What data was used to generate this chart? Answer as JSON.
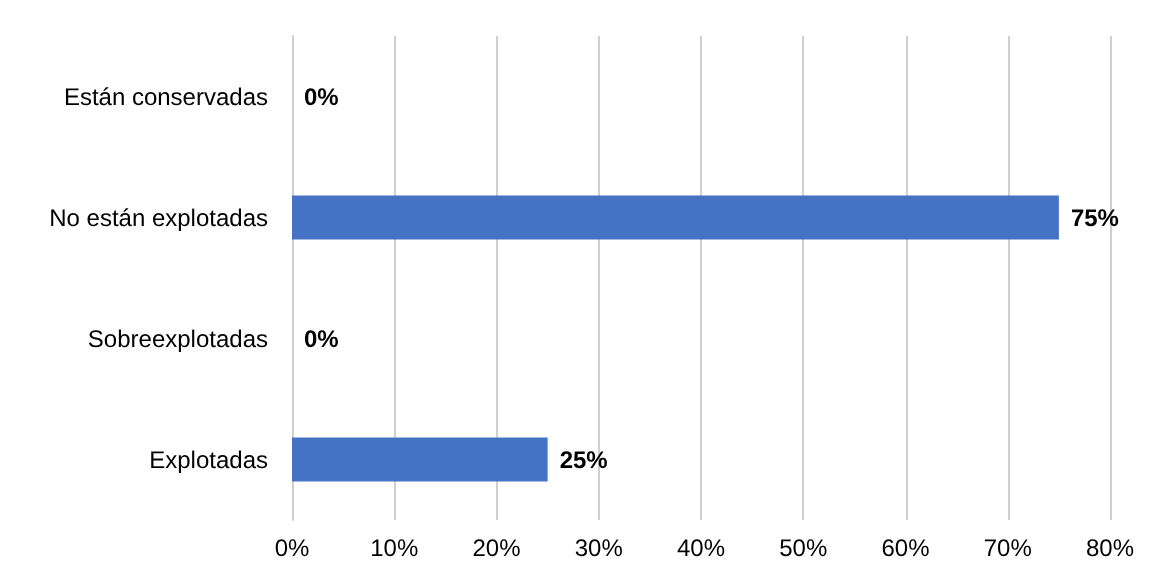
{
  "chart_data": {
    "type": "bar",
    "orientation": "horizontal",
    "categories": [
      "Están conservadas",
      "No están explotadas",
      "Sobreexplotadas",
      "Explotadas"
    ],
    "values": [
      0,
      75,
      0,
      25
    ],
    "value_labels": [
      "0%",
      "75%",
      "0%",
      "25%"
    ],
    "color": "#4472c4",
    "xlim": [
      0,
      80
    ],
    "xticks": [
      {
        "value": 0,
        "label": "0%"
      },
      {
        "value": 10,
        "label": "10%"
      },
      {
        "value": 20,
        "label": "20%"
      },
      {
        "value": 30,
        "label": "30%"
      },
      {
        "value": 40,
        "label": "40%"
      },
      {
        "value": 50,
        "label": "50%"
      },
      {
        "value": 60,
        "label": "60%"
      },
      {
        "value": 70,
        "label": "70%"
      },
      {
        "value": 80,
        "label": "80%"
      }
    ],
    "grid": "x"
  }
}
